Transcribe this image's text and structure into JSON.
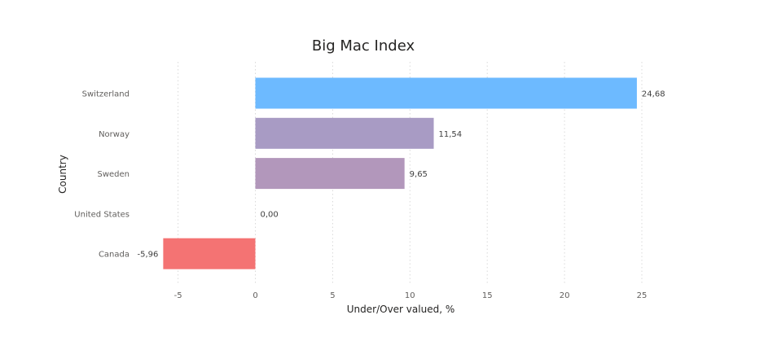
{
  "chart_data": {
    "type": "bar",
    "orientation": "horizontal",
    "title": "Big Mac Index",
    "xlabel": "Under/Over valued, %",
    "ylabel": "Country",
    "categories": [
      "Switzerland",
      "Norway",
      "Sweden",
      "United States",
      "Canada"
    ],
    "values": [
      24.68,
      11.54,
      9.65,
      0.0,
      -5.96
    ],
    "data_labels": [
      "24,68",
      "11,54",
      "9,65",
      "0,00",
      "-5,96"
    ],
    "colors": [
      "#6dbaff",
      "#a89bc4",
      "#b297bb",
      "#b0a4c8",
      "#f47373"
    ],
    "xlim": [
      -6,
      25
    ],
    "xticks": [
      -5,
      0,
      5,
      10,
      15,
      20,
      25
    ],
    "xtick_labels": [
      "-5",
      "0",
      "5",
      "10",
      "15",
      "20",
      "25"
    ],
    "grid": true,
    "legend": "none"
  }
}
